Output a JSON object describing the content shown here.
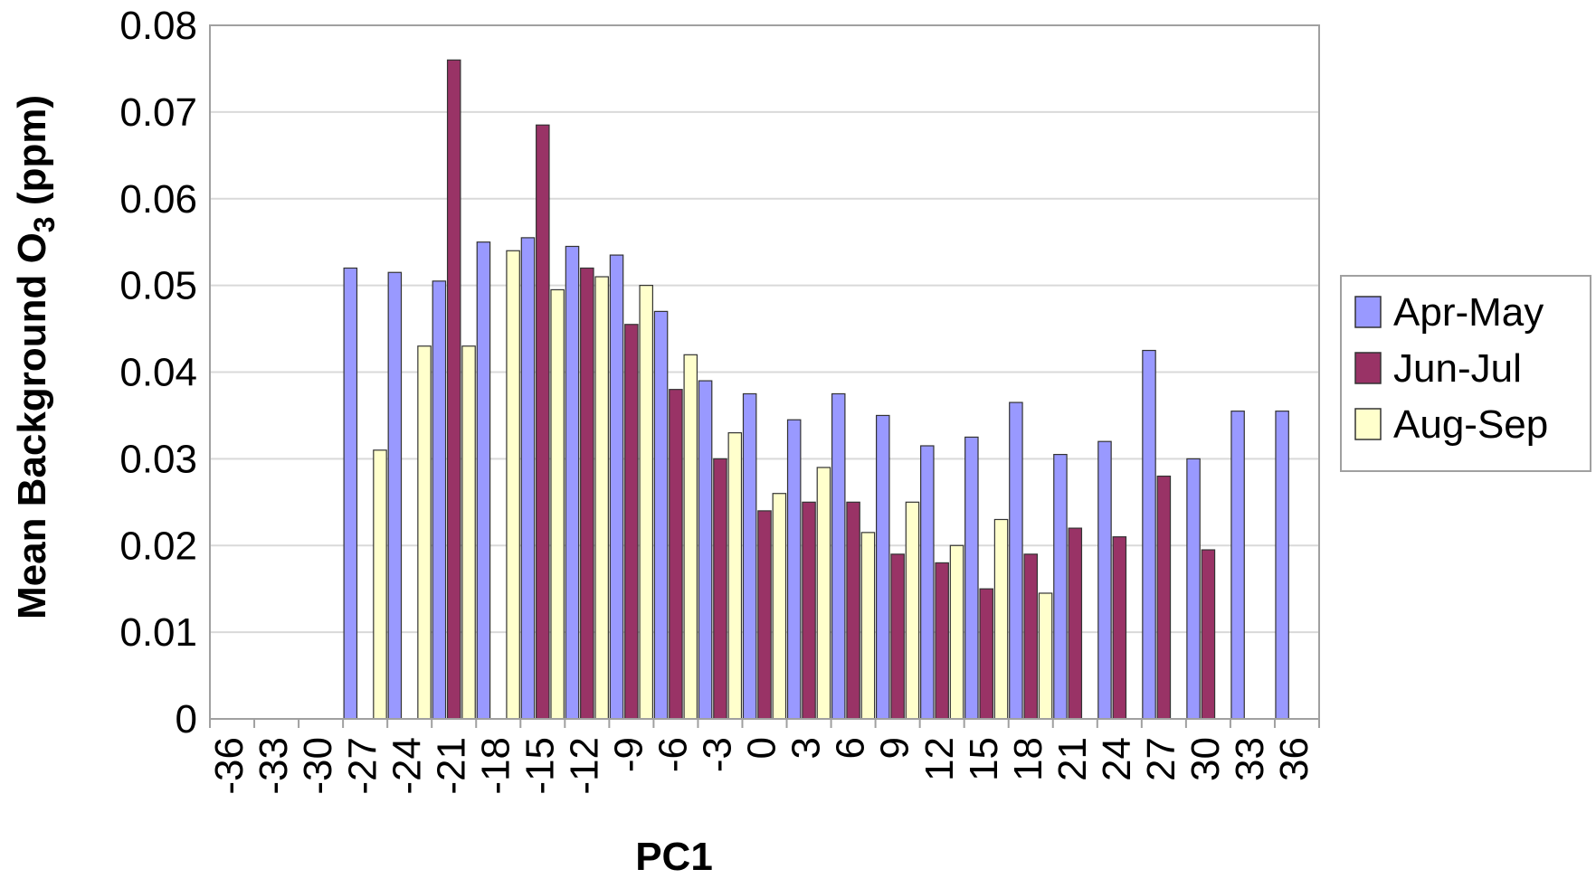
{
  "chart_data": {
    "type": "bar",
    "xlabel": "PC1",
    "ylabel": "Mean Background O",
    "ylabel_subscript": "3",
    "ylabel_suffix": " (ppm)",
    "ylim": [
      0,
      0.08
    ],
    "yticks": [
      0,
      0.01,
      0.02,
      0.03,
      0.04,
      0.05,
      0.06,
      0.07,
      0.08
    ],
    "ytick_labels": [
      "0",
      "0.01",
      "0.02",
      "0.03",
      "0.04",
      "0.05",
      "0.06",
      "0.07",
      "0.08"
    ],
    "grid": true,
    "legend_position": "right",
    "categories": [
      -36,
      -33,
      -30,
      -27,
      -24,
      -21,
      -18,
      -15,
      -12,
      -9,
      -6,
      -3,
      0,
      3,
      6,
      9,
      12,
      15,
      18,
      21,
      24,
      27,
      30,
      33,
      36
    ],
    "category_labels": [
      "-36",
      "-33",
      "-30",
      "-27",
      "-24",
      "-21",
      "-18",
      "-15",
      "-12",
      "-9",
      "-6",
      "-3",
      "0",
      "3",
      "6",
      "9",
      "12",
      "15",
      "18",
      "21",
      "24",
      "27",
      "30",
      "33",
      "36"
    ],
    "series": [
      {
        "name": "Apr-May",
        "color": "#9999ff",
        "values": [
          null,
          null,
          null,
          0.052,
          0.0515,
          0.0505,
          0.055,
          0.0555,
          0.0545,
          0.0535,
          0.047,
          0.039,
          0.0375,
          0.0345,
          0.0375,
          0.035,
          0.0315,
          0.0325,
          0.0365,
          0.0305,
          0.032,
          0.0425,
          0.03,
          0.0355,
          0.0355
        ]
      },
      {
        "name": "Jun-Jul",
        "color": "#993366",
        "values": [
          null,
          null,
          null,
          null,
          null,
          0.076,
          null,
          0.0685,
          0.052,
          0.0455,
          0.038,
          0.03,
          0.024,
          0.025,
          0.025,
          0.019,
          0.018,
          0.015,
          0.019,
          0.022,
          0.021,
          0.028,
          0.0195,
          null,
          null
        ]
      },
      {
        "name": "Aug-Sep",
        "color": "#ffffcc",
        "values": [
          null,
          null,
          null,
          0.031,
          0.043,
          0.043,
          0.054,
          0.0495,
          0.051,
          0.05,
          0.042,
          0.033,
          0.026,
          0.029,
          0.0215,
          0.025,
          0.02,
          0.023,
          0.0145,
          null,
          null,
          null,
          null,
          null,
          null
        ]
      }
    ]
  }
}
